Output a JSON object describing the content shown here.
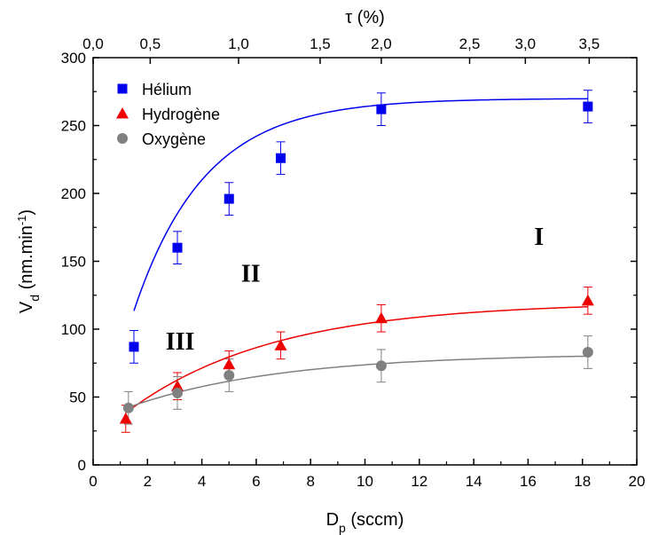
{
  "chart_data": {
    "type": "scatter",
    "x": {
      "label_main": "D",
      "label_sub": "p",
      "label_rest": " (sccm)",
      "range": [
        0,
        20
      ],
      "ticks": [
        "0",
        "2",
        "4",
        "6",
        "8",
        "10",
        "12",
        "14",
        "16",
        "18",
        "20"
      ]
    },
    "x_top": {
      "label": "τ (%)",
      "ticks": [
        {
          "label": "0,0",
          "at_x": 0
        },
        {
          "label": "0,5",
          "at_x": 2.1
        },
        {
          "label": "1,0",
          "at_x": 5.35
        },
        {
          "label": "1,5",
          "at_x": 8.35
        },
        {
          "label": "2,0",
          "at_x": 10.6
        },
        {
          "label": "2,5",
          "at_x": 13.85
        },
        {
          "label": "3,0",
          "at_x": 15.9
        },
        {
          "label": "3,5",
          "at_x": 18.25
        }
      ]
    },
    "y": {
      "label_main": "V",
      "label_sub": "d",
      "label_unit": " (nm.min",
      "label_sup": "-1",
      "label_close": ")",
      "range": [
        0,
        300
      ],
      "ticks": [
        "0",
        "50",
        "100",
        "150",
        "200",
        "250",
        "300"
      ]
    },
    "series": [
      {
        "name": "Hélium",
        "color": "#0000ee",
        "marker": "square",
        "points": [
          {
            "x": 1.5,
            "y": 87,
            "err": 12
          },
          {
            "x": 3.1,
            "y": 160,
            "err": 12
          },
          {
            "x": 5.0,
            "y": 196,
            "err": 12
          },
          {
            "x": 6.9,
            "y": 226,
            "err": 12
          },
          {
            "x": 10.6,
            "y": 262,
            "err": 12
          },
          {
            "x": 18.2,
            "y": 264,
            "err": 12
          }
        ],
        "fit": {
          "a": 270,
          "b": 278,
          "k": 0.383
        }
      },
      {
        "name": "Hydrogène",
        "color": "#ee0000",
        "marker": "triangle",
        "points": [
          {
            "x": 1.2,
            "y": 34,
            "err": 10
          },
          {
            "x": 3.1,
            "y": 58,
            "err": 10
          },
          {
            "x": 5.0,
            "y": 74,
            "err": 10
          },
          {
            "x": 6.9,
            "y": 88,
            "err": 10
          },
          {
            "x": 10.6,
            "y": 108,
            "err": 10
          },
          {
            "x": 18.2,
            "y": 121,
            "err": 10
          }
        ],
        "fit": {
          "a": 120,
          "b": 102,
          "k": 0.185
        }
      },
      {
        "name": "Oxygène",
        "color": "#808080",
        "marker": "circle",
        "points": [
          {
            "x": 1.3,
            "y": 42,
            "err": 12
          },
          {
            "x": 3.1,
            "y": 53,
            "err": 12
          },
          {
            "x": 5.0,
            "y": 66,
            "err": 12
          },
          {
            "x": 10.6,
            "y": 73,
            "err": 12
          },
          {
            "x": 18.2,
            "y": 83,
            "err": 12
          }
        ],
        "fit": {
          "a": 82,
          "b": 50,
          "k": 0.18
        }
      }
    ],
    "annotations": [
      {
        "text": "I",
        "x": 16.4,
        "y": 162
      },
      {
        "text": "II",
        "x": 5.8,
        "y": 135
      },
      {
        "text": "III",
        "x": 3.2,
        "y": 85
      }
    ],
    "legend_position": "top-left",
    "grid": false
  }
}
